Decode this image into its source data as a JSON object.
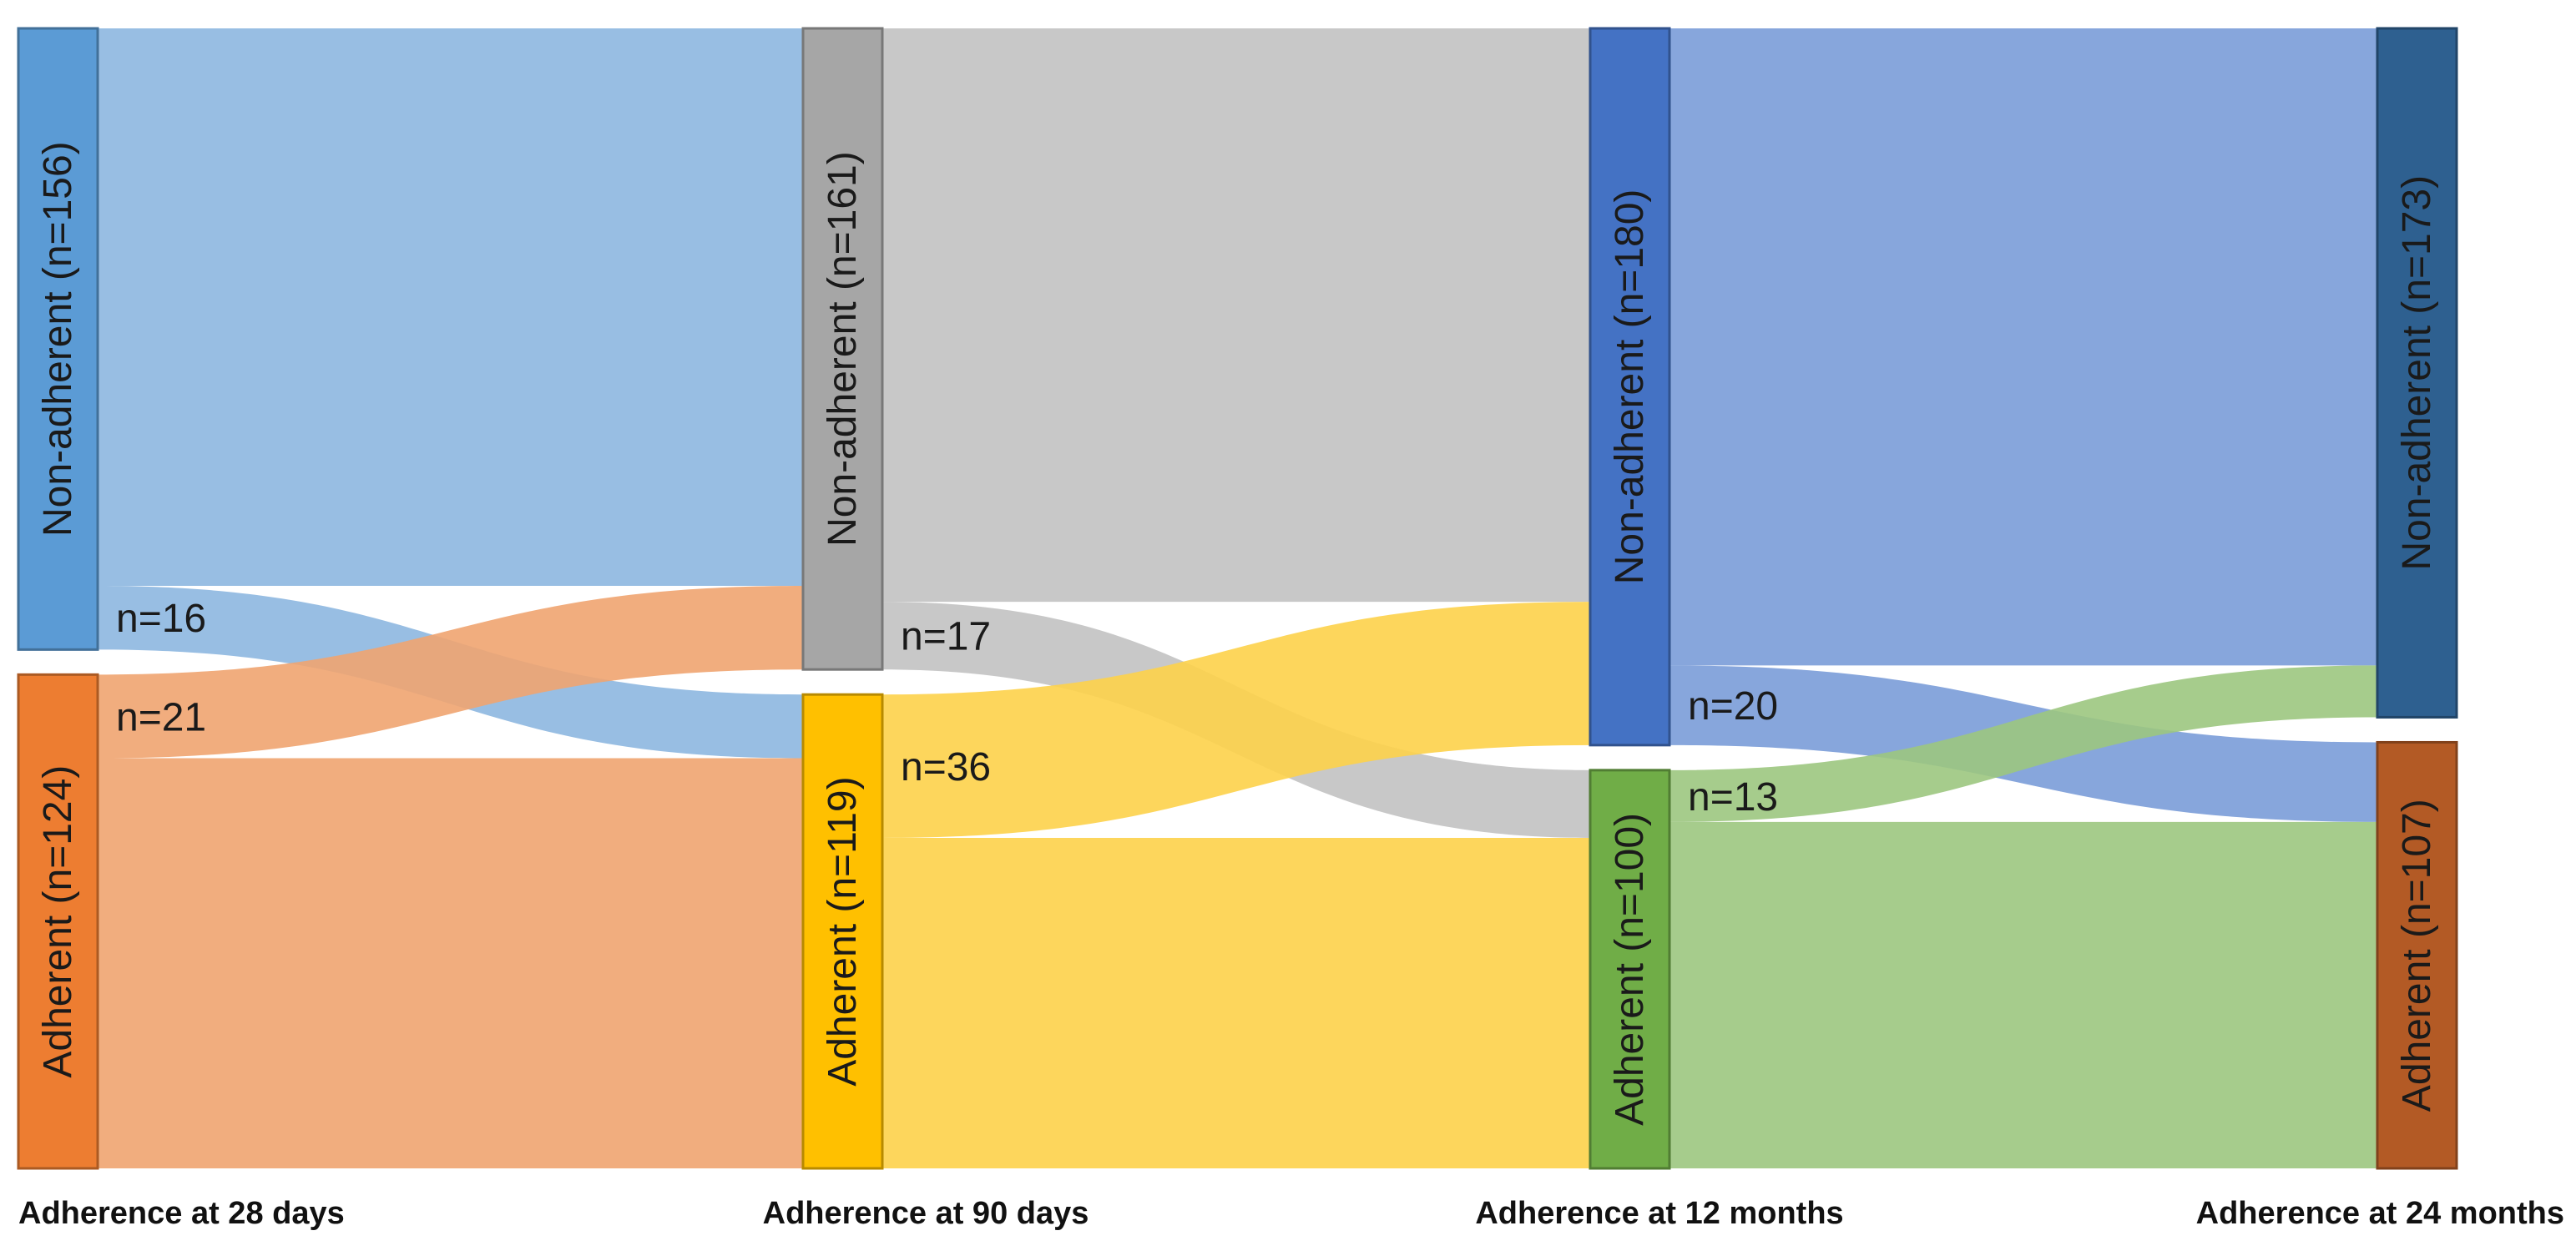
{
  "chart_data": {
    "type": "sankey",
    "stages": [
      {
        "label": "Adherence at 28 days",
        "nodes": [
          {
            "key": "non",
            "label": "Non-adherent (n=156)",
            "value": 156,
            "color": "#5b9bd5"
          },
          {
            "key": "adh",
            "label": "Adherent (n=124)",
            "value": 124,
            "color": "#ed7d31"
          }
        ]
      },
      {
        "label": "Adherence at 90 days",
        "nodes": [
          {
            "key": "non",
            "label": "Non-adherent (n=161)",
            "value": 161,
            "color": "#a6a6a6"
          },
          {
            "key": "adh",
            "label": "Adherent (n=119)",
            "value": 119,
            "color": "#ffc000"
          }
        ]
      },
      {
        "label": "Adherence at 12 months",
        "nodes": [
          {
            "key": "non",
            "label": "Non-adherent (n=180)",
            "value": 180,
            "color": "#4472c4"
          },
          {
            "key": "adh",
            "label": "Adherent (n=100)",
            "value": 100,
            "color": "#70ad47"
          }
        ]
      },
      {
        "label": "Adherence at 24 months",
        "nodes": [
          {
            "key": "non",
            "label": "Non-adherent (n=173)",
            "value": 173,
            "color": "#2e6090"
          },
          {
            "key": "adh",
            "label": "Adherent (n=107)",
            "value": 107,
            "color": "#b35a25"
          }
        ]
      }
    ],
    "transitions": [
      {
        "from_stage": 0,
        "flows": [
          {
            "from": "non",
            "to": "non",
            "value": 140,
            "color": "#8db7e0",
            "label": ""
          },
          {
            "from": "non",
            "to": "adh",
            "value": 16,
            "color": "#8db7e0",
            "label": "n=16"
          },
          {
            "from": "adh",
            "to": "non",
            "value": 21,
            "color": "#f0a470",
            "label": "n=21"
          },
          {
            "from": "adh",
            "to": "adh",
            "value": 103,
            "color": "#f0a470",
            "label": ""
          }
        ]
      },
      {
        "from_stage": 1,
        "flows": [
          {
            "from": "non",
            "to": "non",
            "value": 144,
            "color": "#c2c2c2",
            "label": ""
          },
          {
            "from": "non",
            "to": "adh",
            "value": 17,
            "color": "#c2c2c2",
            "label": "n=17"
          },
          {
            "from": "adh",
            "to": "non",
            "value": 36,
            "color": "#fdd24a",
            "label": "n=36"
          },
          {
            "from": "adh",
            "to": "adh",
            "value": 83,
            "color": "#fdd24a",
            "label": ""
          }
        ]
      },
      {
        "from_stage": 2,
        "flows": [
          {
            "from": "non",
            "to": "non",
            "value": 160,
            "color": "#7a9cd8",
            "label": ""
          },
          {
            "from": "non",
            "to": "adh",
            "value": 20,
            "color": "#7a9cd8",
            "label": "n=20"
          },
          {
            "from": "adh",
            "to": "non",
            "value": 13,
            "color": "#9cc67f",
            "label": "n=13"
          },
          {
            "from": "adh",
            "to": "adh",
            "value": 87,
            "color": "#9cc67f",
            "label": ""
          }
        ]
      }
    ]
  }
}
